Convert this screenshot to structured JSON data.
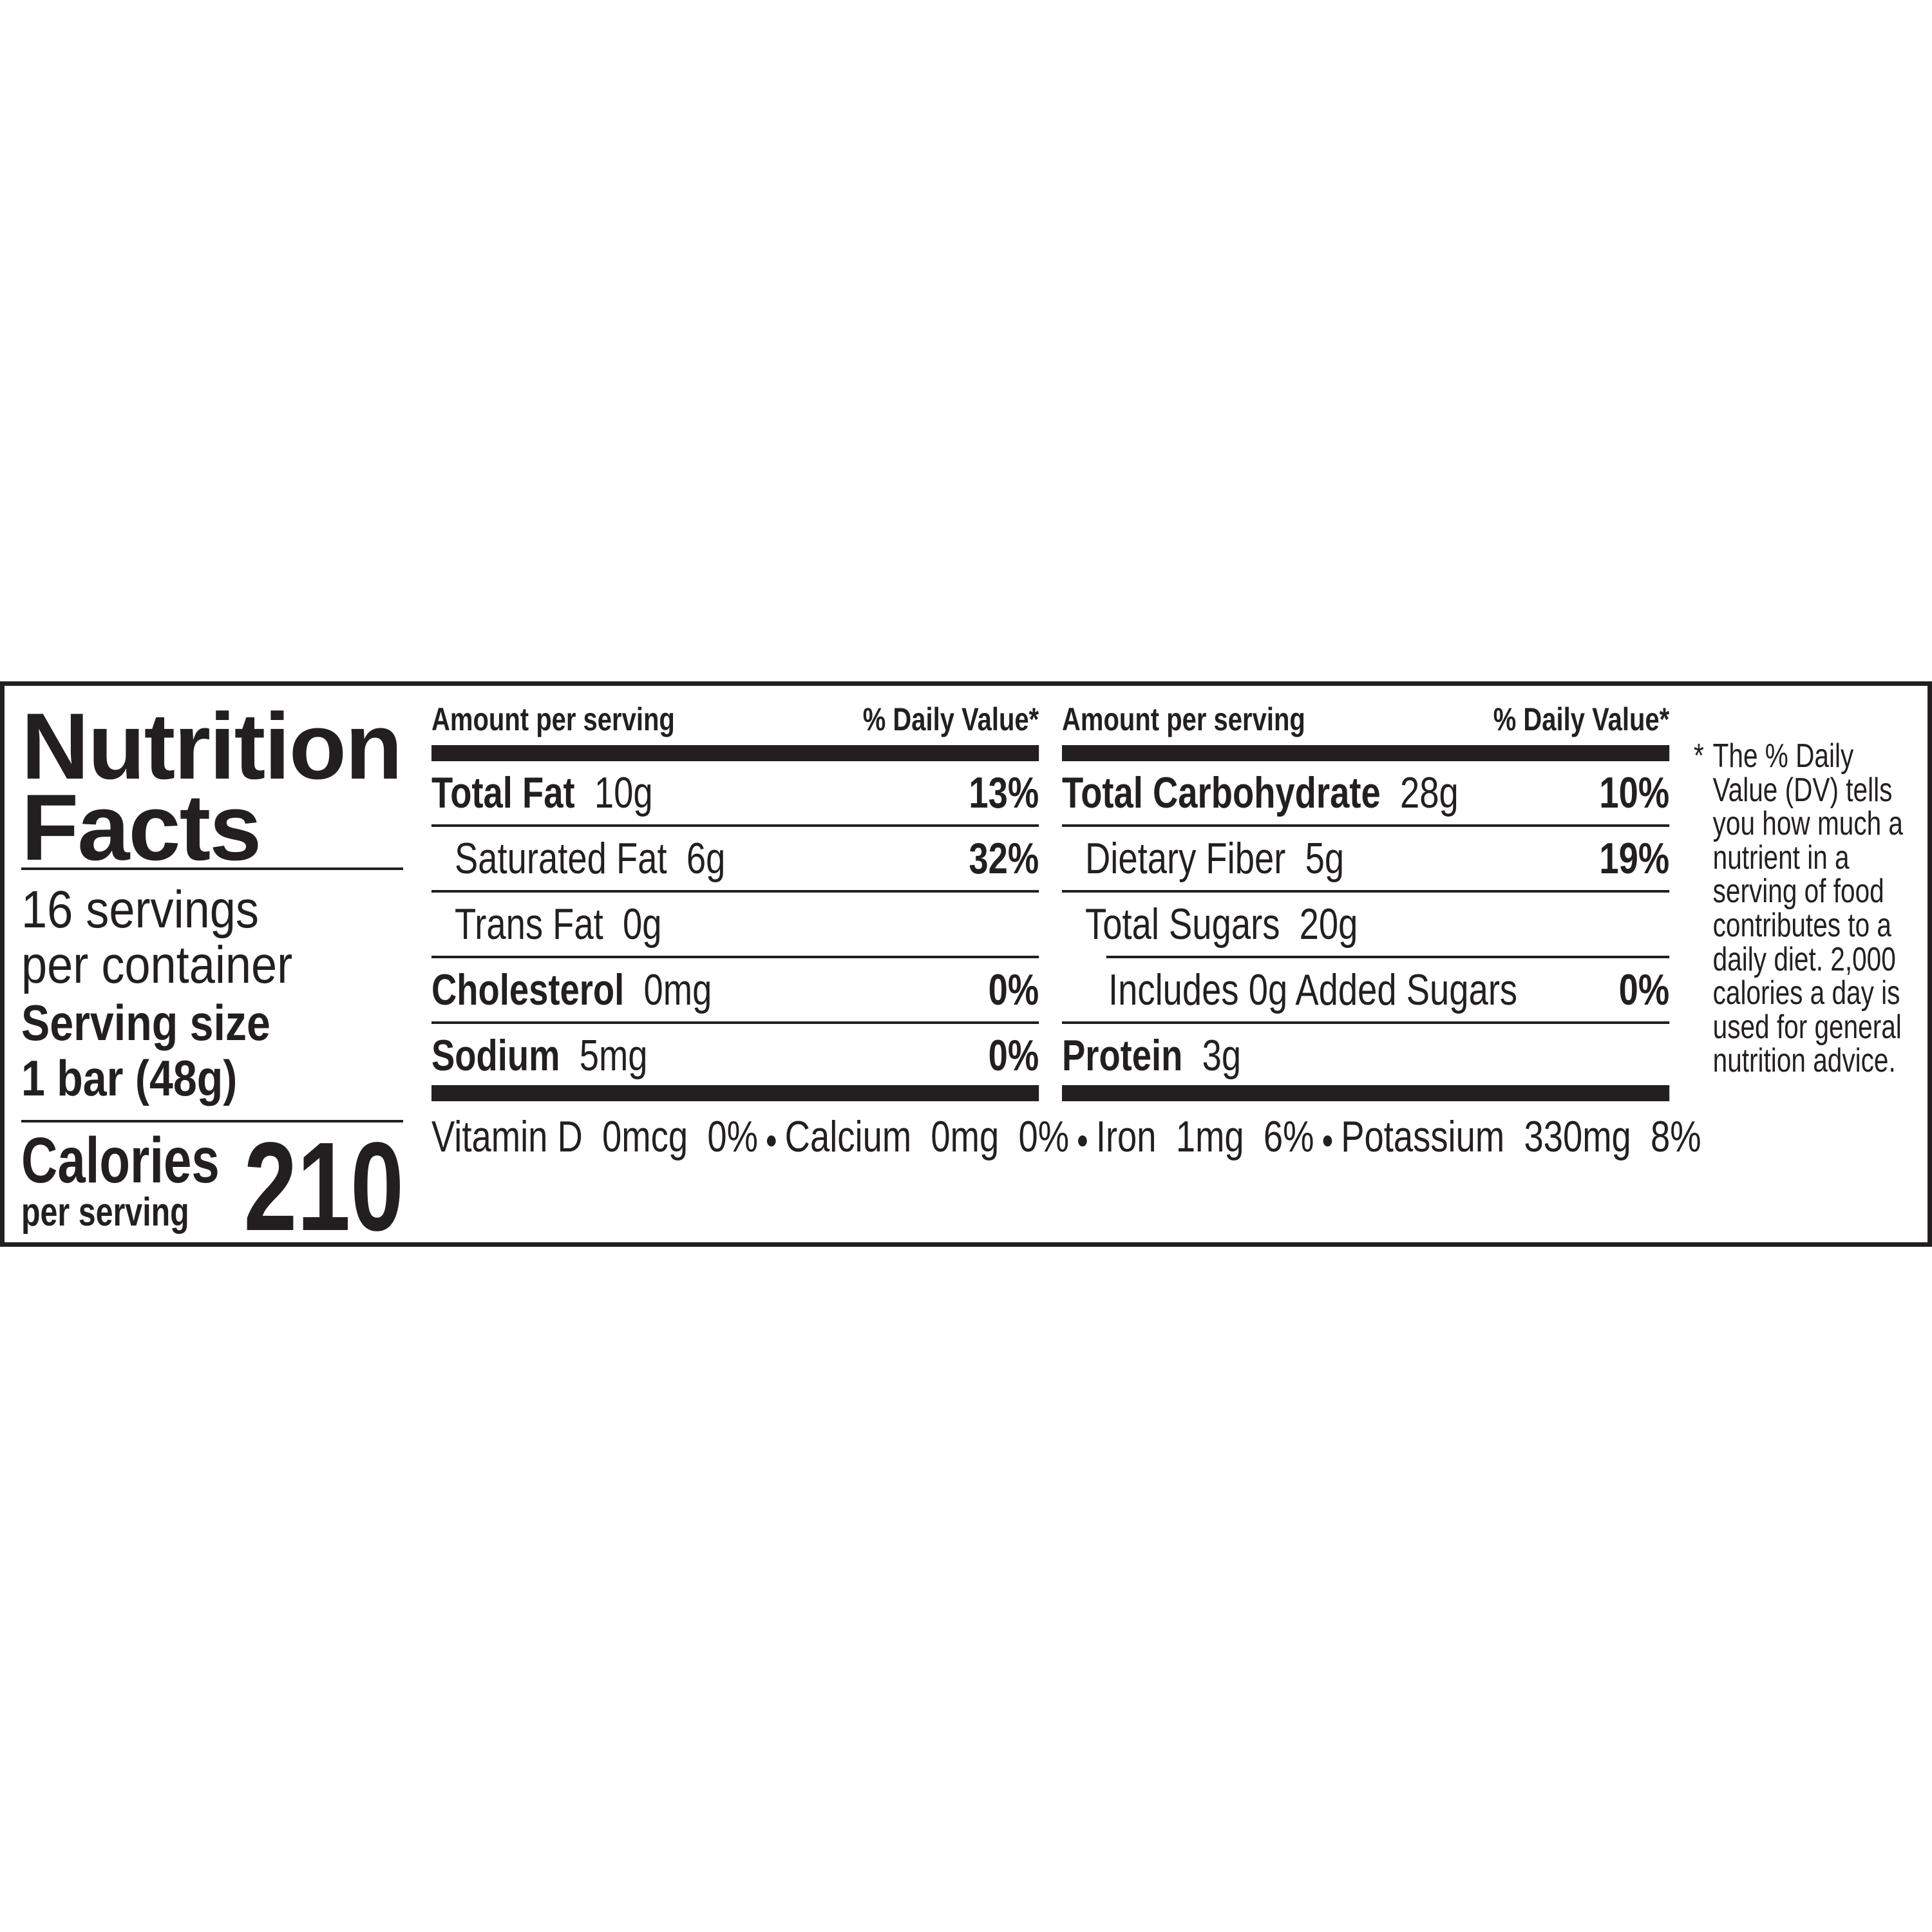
{
  "label": {
    "title_line1": "Nutrition",
    "title_line2": "Facts",
    "servings_line1": "16 servings",
    "servings_line2": "per container",
    "serving_size_label": "Serving size",
    "serving_size_value": "1 bar (48g)",
    "calories_label": "Calories",
    "calories_sublabel": "per serving",
    "calories_value": "210"
  },
  "columns": [
    {
      "header_left": "Amount per serving",
      "header_right": "% Daily Value*",
      "rows": [
        {
          "name": "Total Fat",
          "amount": "10g",
          "dv": "13%"
        },
        {
          "name": "Saturated Fat",
          "amount": "6g",
          "dv": "32%"
        },
        {
          "name": "Trans Fat",
          "amount": "0g",
          "dv": ""
        },
        {
          "name": "Cholesterol",
          "amount": "0mg",
          "dv": "0%"
        },
        {
          "name": "Sodium",
          "amount": "5mg",
          "dv": "0%"
        }
      ]
    },
    {
      "header_left": "Amount per serving",
      "header_right": "% Daily Value*",
      "rows": [
        {
          "name": "Total Carbohydrate",
          "amount": "28g",
          "dv": "10%"
        },
        {
          "name": "Dietary Fiber",
          "amount": "5g",
          "dv": "19%"
        },
        {
          "name": "Total Sugars",
          "amount": "20g",
          "dv": ""
        },
        {
          "name": "Includes 0g Added Sugars",
          "amount": "",
          "dv": "0%"
        },
        {
          "name": "Protein",
          "amount": "3g",
          "dv": ""
        }
      ]
    }
  ],
  "vitamins": [
    {
      "name": "Vitamin D",
      "amount": "0mcg",
      "dv": "0%"
    },
    {
      "name": "Calcium",
      "amount": "0mg",
      "dv": "0%"
    },
    {
      "name": "Iron",
      "amount": "1mg",
      "dv": "6%"
    },
    {
      "name": "Potassium",
      "amount": "330mg",
      "dv": "8%"
    }
  ],
  "footnote": {
    "star": "*",
    "text": "The % Daily Value (DV) tells you how much a nutrient in a serving of food contributes to a daily diet. 2,000 calories a day is used for general nutrition advice."
  },
  "colors": {
    "ink": "#231f20",
    "background": "#ffffff"
  }
}
